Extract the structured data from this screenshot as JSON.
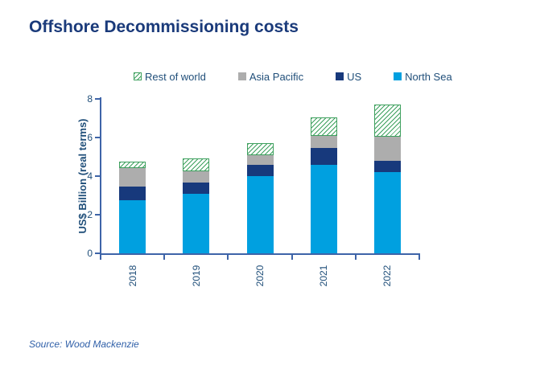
{
  "page": {
    "title": "Offshore Decommissioning costs",
    "source": "Source: Wood Mackenzie"
  },
  "legend": {
    "position": "top",
    "items": [
      "Rest of world",
      "Asia Pacific",
      "US",
      "North Sea"
    ]
  },
  "colors": {
    "north_sea": "#00a0e0",
    "us": "#17397c",
    "asia_pacific": "#adadad",
    "rest_of_world_hatch": "#3ea05e",
    "axis_line": "#3e64a8",
    "axis_text": "#1f4e79",
    "title_text": "#1a3a7a",
    "source_text": "#2f5fa8"
  },
  "chart_data": {
    "type": "bar",
    "stacked": true,
    "title": "Offshore Decommissioning costs",
    "xlabel": "",
    "ylabel": "US$ Billion (real terms)",
    "categories": [
      "2018",
      "2019",
      "2020",
      "2021",
      "2022"
    ],
    "series": [
      {
        "name": "North Sea",
        "color": "#00a0e0",
        "style": "solid",
        "values": [
          2.75,
          3.1,
          4.0,
          4.6,
          4.2
        ]
      },
      {
        "name": "US",
        "color": "#17397c",
        "style": "solid",
        "values": [
          0.7,
          0.55,
          0.6,
          0.85,
          0.6
        ]
      },
      {
        "name": "Asia Pacific",
        "color": "#adadad",
        "style": "solid",
        "values": [
          0.95,
          0.6,
          0.5,
          0.65,
          1.25
        ]
      },
      {
        "name": "Rest of world",
        "color": "#3ea05e",
        "style": "hatched",
        "values": [
          0.35,
          0.65,
          0.6,
          0.95,
          1.65
        ]
      }
    ],
    "totals": [
      4.75,
      4.9,
      5.7,
      7.05,
      7.7
    ],
    "ylim": [
      0,
      8
    ],
    "yticks": [
      0,
      2,
      4,
      6,
      8
    ],
    "grid": false,
    "legend_position": "top"
  }
}
